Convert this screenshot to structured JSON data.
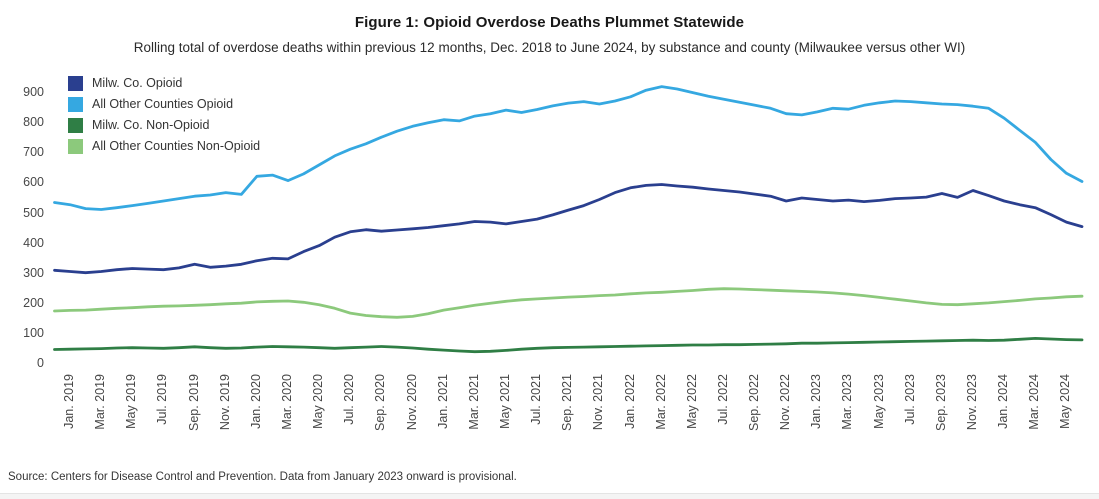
{
  "header": {
    "title": "Figure 1: Opioid Overdose Deaths Plummet Statewide",
    "subtitle": "Rolling total of overdose deaths within previous 12 months, Dec. 2018 to June 2024, by substance and county (Milwaukee versus other WI)"
  },
  "source_note": "Source: Centers for Disease Control and Prevention. Data from January 2023 onward is provisional.",
  "colors": {
    "milw_opioid": "#2a3f8f",
    "other_opioid": "#35a8e1",
    "milw_nonopioid": "#2f7e45",
    "other_nonopioid": "#8cc97c",
    "axis_text": "#474747"
  },
  "chart_data": {
    "type": "line",
    "title": "Figure 1: Opioid Overdose Deaths Plummet Statewide",
    "subtitle": "Rolling total of overdose deaths within previous 12 months, Dec. 2018 to June 2024, by substance and county (Milwaukee versus other WI)",
    "grid": false,
    "legend_position": "top-left",
    "ylim": [
      0,
      940
    ],
    "y_ticks": [
      0,
      100,
      200,
      300,
      400,
      500,
      600,
      700,
      800,
      900
    ],
    "x_tick_labels": [
      "Jan. 2019",
      "Mar. 2019",
      "May 2019",
      "Jul. 2019",
      "Sep. 2019",
      "Nov. 2019",
      "Jan. 2020",
      "Mar. 2020",
      "May 2020",
      "Jul. 2020",
      "Sep. 2020",
      "Nov. 2020",
      "Jan. 2021",
      "Mar. 2021",
      "May 2021",
      "Jul. 2021",
      "Sep. 2021",
      "Nov. 2021",
      "Jan. 2022",
      "Mar. 2022",
      "May 2022",
      "Jul. 2022",
      "Sep. 2022",
      "Nov. 2022",
      "Jan. 2023",
      "Mar. 2023",
      "May 2023",
      "Jul. 2023",
      "Sep. 2023",
      "Nov. 2023",
      "Jan. 2024",
      "Mar. 2024",
      "May 2024"
    ],
    "months": [
      "Dec. 2018",
      "Jan. 2019",
      "Feb. 2019",
      "Mar. 2019",
      "Apr. 2019",
      "May 2019",
      "Jun. 2019",
      "Jul. 2019",
      "Aug. 2019",
      "Sep. 2019",
      "Oct. 2019",
      "Nov. 2019",
      "Dec. 2019",
      "Jan. 2020",
      "Feb. 2020",
      "Mar. 2020",
      "Apr. 2020",
      "May 2020",
      "Jun. 2020",
      "Jul. 2020",
      "Aug. 2020",
      "Sep. 2020",
      "Oct. 2020",
      "Nov. 2020",
      "Dec. 2020",
      "Jan. 2021",
      "Feb. 2021",
      "Mar. 2021",
      "Apr. 2021",
      "May 2021",
      "Jun. 2021",
      "Jul. 2021",
      "Aug. 2021",
      "Sep. 2021",
      "Oct. 2021",
      "Nov. 2021",
      "Dec. 2021",
      "Jan. 2022",
      "Feb. 2022",
      "Mar. 2022",
      "Apr. 2022",
      "May 2022",
      "Jun. 2022",
      "Jul. 2022",
      "Aug. 2022",
      "Sep. 2022",
      "Oct. 2022",
      "Nov. 2022",
      "Dec. 2022",
      "Jan. 2023",
      "Feb. 2023",
      "Mar. 2023",
      "Apr. 2023",
      "May 2023",
      "Jun. 2023",
      "Jul. 2023",
      "Aug. 2023",
      "Sep. 2023",
      "Oct. 2023",
      "Nov. 2023",
      "Dec. 2023",
      "Jan. 2024",
      "Feb. 2024",
      "Mar. 2024",
      "Apr. 2024",
      "May 2024",
      "Jun. 2024"
    ],
    "series": [
      {
        "name": "Milw. Co. Opioid",
        "color": "#2a3f8f",
        "values": [
          310,
          306,
          302,
          306,
          312,
          316,
          314,
          312,
          318,
          330,
          320,
          324,
          330,
          342,
          350,
          348,
          372,
          392,
          420,
          438,
          445,
          440,
          444,
          448,
          452,
          458,
          464,
          472,
          470,
          464,
          472,
          480,
          494,
          510,
          525,
          545,
          568,
          584,
          592,
          595,
          590,
          586,
          580,
          575,
          570,
          563,
          556,
          540,
          550,
          545,
          540,
          543,
          538,
          542,
          548,
          550,
          553,
          565,
          552,
          575,
          558,
          540,
          528,
          518,
          495,
          470,
          455
        ]
      },
      {
        "name": "All Other Counties Opioid",
        "color": "#35a8e1",
        "values": [
          535,
          528,
          515,
          512,
          518,
          525,
          532,
          540,
          548,
          556,
          560,
          568,
          562,
          622,
          626,
          608,
          630,
          660,
          690,
          712,
          730,
          752,
          772,
          788,
          800,
          810,
          806,
          822,
          830,
          842,
          834,
          844,
          856,
          865,
          870,
          862,
          872,
          886,
          908,
          920,
          912,
          900,
          888,
          878,
          868,
          858,
          848,
          830,
          826,
          836,
          848,
          845,
          858,
          866,
          872,
          870,
          866,
          862,
          860,
          855,
          848,
          815,
          775,
          735,
          678,
          632,
          605
        ]
      },
      {
        "name": "Milw. Co. Non-Opioid",
        "color": "#2f7e45",
        "values": [
          47,
          48,
          49,
          50,
          52,
          53,
          52,
          51,
          53,
          56,
          53,
          51,
          52,
          55,
          57,
          56,
          55,
          53,
          51,
          53,
          55,
          57,
          55,
          52,
          48,
          45,
          42,
          40,
          41,
          44,
          48,
          51,
          53,
          54,
          55,
          56,
          57,
          58,
          59,
          60,
          61,
          62,
          62,
          63,
          63,
          64,
          65,
          66,
          68,
          68,
          69,
          70,
          71,
          72,
          73,
          74,
          75,
          76,
          77,
          78,
          77,
          78,
          81,
          84,
          82,
          80,
          79
        ]
      },
      {
        "name": "All Other Counties Non-Opioid",
        "color": "#8cc97c",
        "values": [
          175,
          177,
          178,
          181,
          184,
          186,
          189,
          191,
          192,
          194,
          196,
          199,
          201,
          205,
          207,
          208,
          204,
          196,
          184,
          168,
          160,
          156,
          154,
          157,
          166,
          178,
          186,
          194,
          201,
          207,
          212,
          215,
          218,
          221,
          223,
          226,
          228,
          232,
          235,
          237,
          240,
          243,
          247,
          249,
          248,
          246,
          244,
          242,
          240,
          238,
          235,
          231,
          226,
          220,
          214,
          208,
          202,
          197,
          196,
          199,
          202,
          206,
          210,
          215,
          218,
          222,
          224
        ]
      }
    ]
  }
}
